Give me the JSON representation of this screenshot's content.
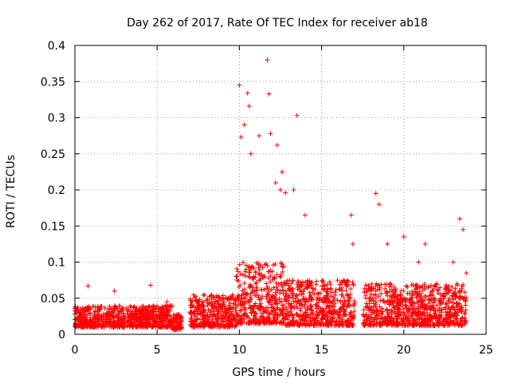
{
  "chart_data": {
    "type": "scatter",
    "title": "Day 262 of 2017, Rate Of TEC Index for receiver ab18",
    "xlabel": "GPS time / hours",
    "ylabel": "ROTI / TECUs",
    "xlim": [
      0,
      25
    ],
    "ylim": [
      0,
      0.4
    ],
    "x_ticks": [
      "0",
      "5",
      "10",
      "15",
      "20",
      "25"
    ],
    "y_ticks": [
      "0",
      "0.05",
      "0.1",
      "0.15",
      "0.2",
      "0.25",
      "0.3",
      "0.35",
      "0.4"
    ],
    "grid": true,
    "marker": "+",
    "series_color": "#ff0000",
    "x": [
      0.8,
      2.4,
      4.6,
      5.6,
      10.0,
      10.1,
      10.3,
      10.5,
      10.6,
      10.7,
      11.2,
      11.7,
      11.8,
      11.9,
      12.2,
      12.3,
      12.5,
      12.6,
      12.8,
      13.3,
      13.5,
      14.0,
      16.8,
      16.9,
      18.3,
      18.5,
      19.0,
      20.0,
      20.9,
      21.3,
      22.0,
      23.0,
      23.4,
      23.6,
      23.8
    ],
    "y": [
      0.067,
      0.06,
      0.068,
      0.045,
      0.345,
      0.273,
      0.29,
      0.334,
      0.316,
      0.25,
      0.275,
      0.38,
      0.333,
      0.278,
      0.21,
      0.262,
      0.2,
      0.225,
      0.196,
      0.2,
      0.303,
      0.165,
      0.165,
      0.125,
      0.195,
      0.18,
      0.125,
      0.135,
      0.1,
      0.125,
      0.07,
      0.1,
      0.16,
      0.145,
      0.085
    ],
    "bands": [
      {
        "x": [
          0.0,
          5.9
        ],
        "y": [
          0.01,
          0.04
        ]
      },
      {
        "x": [
          5.9,
          6.5
        ],
        "y": [
          0.006,
          0.028
        ]
      },
      {
        "x": [
          7.0,
          9.8
        ],
        "y": [
          0.01,
          0.055
        ]
      },
      {
        "x": [
          9.8,
          12.8
        ],
        "y": [
          0.015,
          0.1
        ]
      },
      {
        "x": [
          12.8,
          17.0
        ],
        "y": [
          0.012,
          0.075
        ]
      },
      {
        "x": [
          17.5,
          23.8
        ],
        "y": [
          0.012,
          0.07
        ]
      }
    ]
  }
}
